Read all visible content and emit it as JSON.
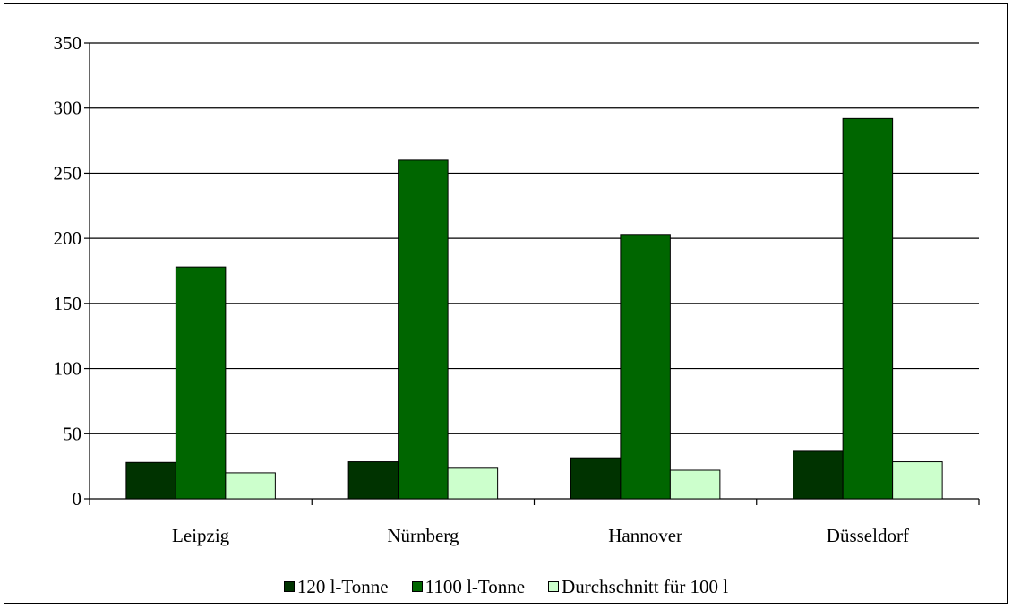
{
  "chart_data": {
    "type": "bar",
    "categories": [
      "Leipzig",
      "Nürnberg",
      "Hannover",
      "Düsseldorf"
    ],
    "series": [
      {
        "name": "120 l-Tonne",
        "values": [
          28,
          28.5,
          31.5,
          36.5
        ],
        "color": "#003300"
      },
      {
        "name": "1100 l-Tonne",
        "values": [
          178,
          260,
          203,
          292
        ],
        "color": "#006600"
      },
      {
        "name": "Durchschnitt für 100 l",
        "values": [
          20,
          23.5,
          22,
          28.5
        ],
        "color": "#ccffcc"
      }
    ],
    "ylim": [
      0,
      350
    ],
    "yticks": [
      0,
      50,
      100,
      150,
      200,
      250,
      300,
      350
    ],
    "grid": true,
    "legend_position": "bottom"
  }
}
